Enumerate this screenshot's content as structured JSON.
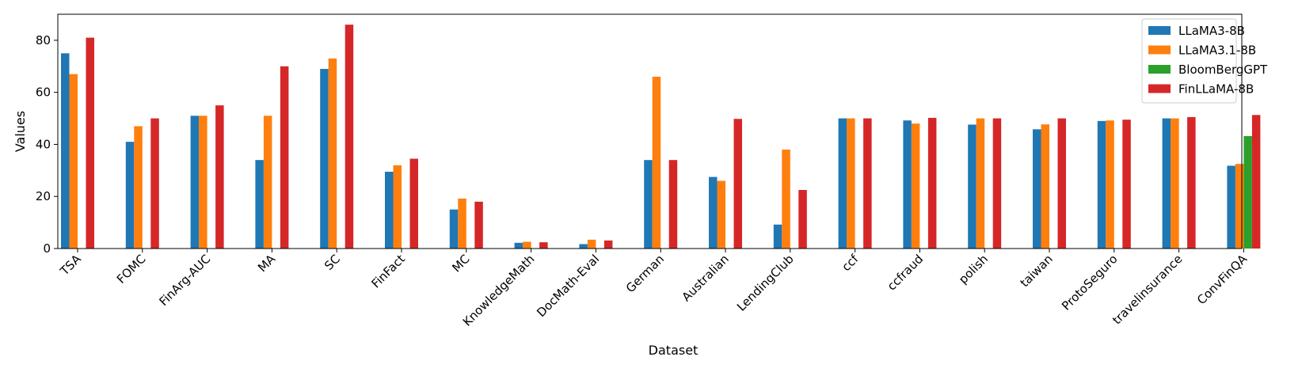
{
  "chart_data": {
    "type": "bar",
    "title": "",
    "xlabel": "Dataset",
    "ylabel": "Values",
    "ylim": [
      0,
      90
    ],
    "yticks": [
      0,
      20,
      40,
      60,
      80
    ],
    "grid": false,
    "legend_position": "top-right",
    "categories": [
      "TSA",
      "FOMC",
      "FinArg-AUC",
      "MA",
      "SC",
      "FinFact",
      "MC",
      "KnowledgeMath",
      "DocMath-Eval",
      "German",
      "Australian",
      "LendingClub",
      "ccf",
      "ccfraud",
      "polish",
      "taiwan",
      "ProtoSeguro",
      "travelinsurance",
      "ConvFinQA"
    ],
    "series": [
      {
        "name": "LLaMA3-8B",
        "color": "#1f77b4",
        "values": [
          75,
          41,
          51,
          34,
          69,
          29.5,
          15,
          2.2,
          1.7,
          34,
          27.5,
          9.2,
          50,
          49.2,
          47.6,
          45.8,
          49,
          50,
          31.8
        ]
      },
      {
        "name": "LLaMA3.1-8B",
        "color": "#ff7f0e",
        "values": [
          67,
          47,
          51,
          51,
          73,
          32,
          19.2,
          2.6,
          3.4,
          66,
          26,
          38,
          50,
          48,
          50,
          47.7,
          49.2,
          50,
          32.5
        ]
      },
      {
        "name": "BloomBergGPT",
        "color": "#2ca02c",
        "values": [
          0,
          0,
          0,
          0,
          0,
          0,
          0,
          0,
          0,
          0,
          0,
          0,
          0,
          0,
          0,
          0,
          0,
          0,
          43.2
        ]
      },
      {
        "name": "FinLLaMA-8B",
        "color": "#d62728",
        "values": [
          81,
          50,
          55,
          70,
          86,
          34.5,
          18,
          2.4,
          3.1,
          34,
          49.8,
          22.5,
          50,
          50.2,
          50,
          50,
          49.5,
          50.5,
          51.3
        ]
      }
    ]
  }
}
